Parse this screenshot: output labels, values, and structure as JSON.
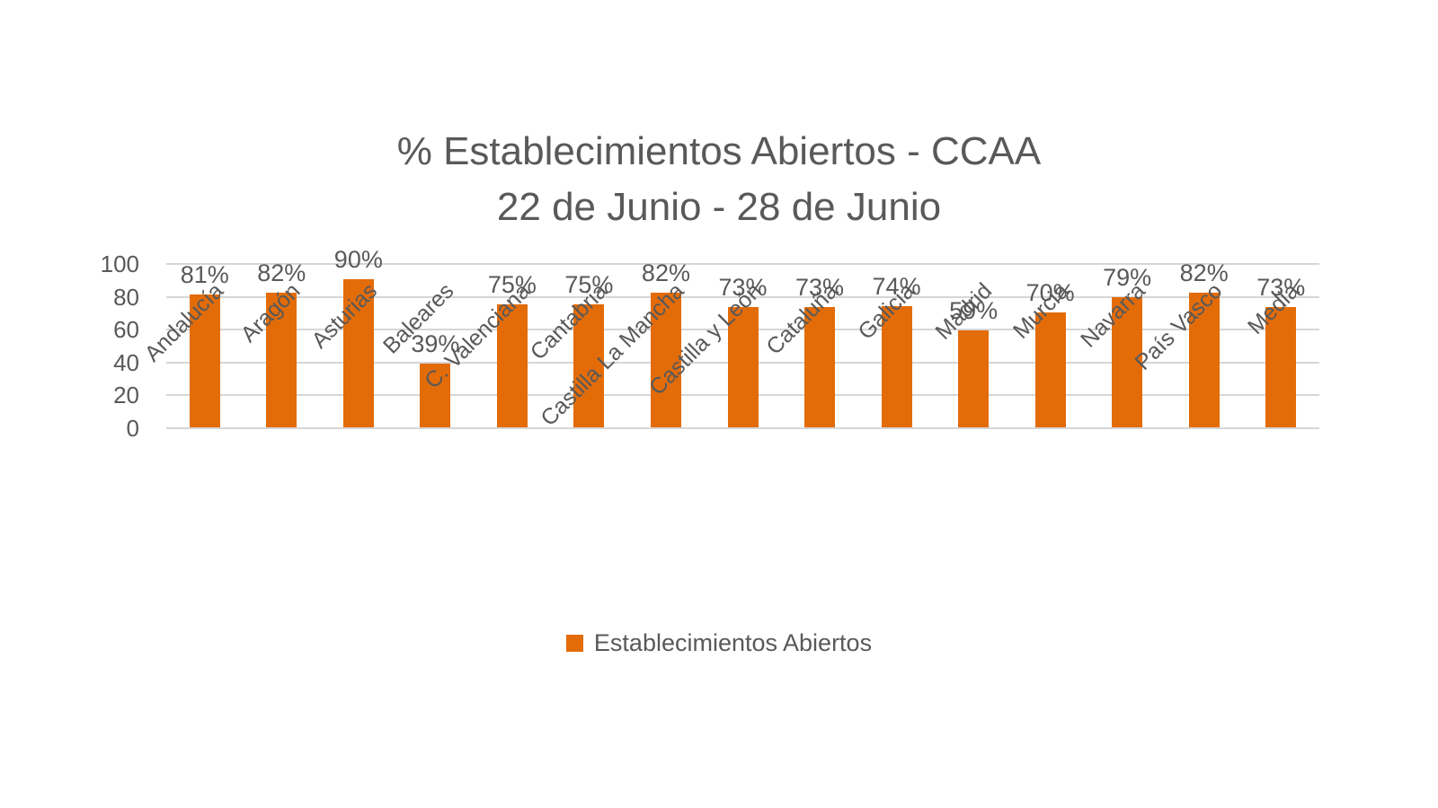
{
  "chart_data": {
    "type": "bar",
    "title": "% Establecimientos Abiertos - CCAA",
    "subtitle": "22 de Junio - 28 de Junio",
    "categories": [
      "Andalucía",
      "Aragón",
      "Asturias",
      "Baleares",
      "C. Valenciana",
      "Cantabria",
      "Castilla La Mancha",
      "Castilla y León",
      "Cataluña",
      "Galicia",
      "Madrid",
      "Murcia",
      "Navarra",
      "País Vasco",
      "Media"
    ],
    "series": [
      {
        "name": "Establecimientos Abiertos",
        "values": [
          81,
          82,
          90,
          39,
          75,
          75,
          82,
          73,
          73,
          74,
          59,
          70,
          79,
          82,
          73
        ],
        "value_labels": [
          "81%",
          "82%",
          "90%",
          "39%",
          "75%",
          "75%",
          "82%",
          "73%",
          "73%",
          "74%",
          "59%",
          "70%",
          "79%",
          "82%",
          "73%"
        ]
      }
    ],
    "xlabel": "",
    "ylabel": "",
    "ylim": [
      0,
      100
    ],
    "y_ticks": [
      0,
      20,
      40,
      60,
      80,
      100
    ],
    "y_tick_labels": [
      "0",
      "20",
      "40",
      "60",
      "80",
      "100"
    ],
    "grid": true,
    "legend": {
      "label": "Establecimientos Abiertos",
      "position": "bottom"
    },
    "colors": {
      "bar": "#E36C09",
      "text": "#595959",
      "gridline": "#D6D6D6",
      "background": "#FFFFFF"
    }
  }
}
